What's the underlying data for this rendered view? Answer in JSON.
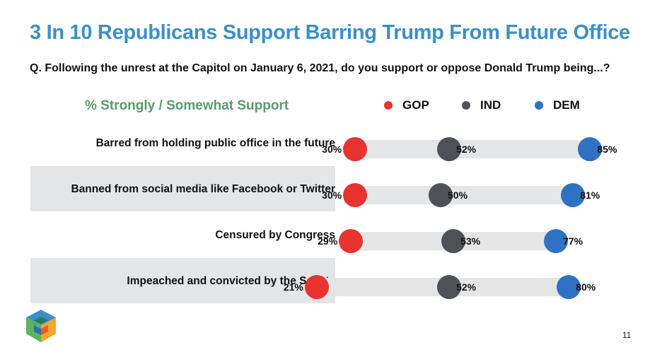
{
  "title": "3 In 10 Republicans Support Barring Trump From Future Office",
  "question": "Q. Following the unrest at the Capitol on January 6, 2021, do you support or oppose Donald Trump being...?",
  "subhead": "% Strongly / Somewhat Support",
  "page_number": "11",
  "colors": {
    "GOP": "#e8332e",
    "IND": "#4e5257",
    "DEM": "#2f72c4",
    "title": "#3a8fc9",
    "subhead": "#5a9a6e",
    "track": "#e3e5e7"
  },
  "chart_data": {
    "type": "dot",
    "series": [
      {
        "name": "GOP",
        "color": "#e8332e"
      },
      {
        "name": "IND",
        "color": "#4e5257"
      },
      {
        "name": "DEM",
        "color": "#2f72c4"
      }
    ],
    "rows": [
      {
        "label": "Barred from holding public office in the future",
        "values": {
          "GOP": 30,
          "IND": 52,
          "DEM": 85
        },
        "labels": {
          "GOP": "30%",
          "IND": "52%",
          "DEM": "85%"
        }
      },
      {
        "label": "Banned from social media like Facebook or Twitter",
        "values": {
          "GOP": 30,
          "IND": 50,
          "DEM": 81
        },
        "labels": {
          "GOP": "30%",
          "IND": "50%",
          "DEM": "81%"
        }
      },
      {
        "label": "Censured by Congress",
        "values": {
          "GOP": 29,
          "IND": 53,
          "DEM": 77
        },
        "labels": {
          "GOP": "29%",
          "IND": "53%",
          "DEM": "77%"
        }
      },
      {
        "label": "Impeached and convicted by the Senate",
        "values": {
          "GOP": 21,
          "IND": 52,
          "DEM": 80
        },
        "labels": {
          "GOP": "21%",
          "IND": "52%",
          "DEM": "80%"
        }
      }
    ],
    "x_range": [
      0,
      100
    ],
    "shaded_rows": [
      1,
      3
    ]
  }
}
